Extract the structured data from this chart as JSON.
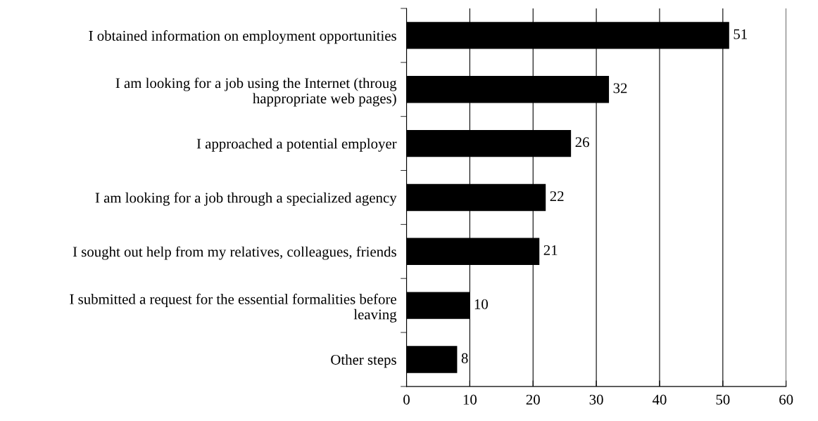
{
  "chart_data": {
    "type": "bar",
    "orientation": "horizontal",
    "categories": [
      "I obtained information on employment opportunities",
      "I am looking for a job using the Internet (throug\nhappropriate web pages)",
      "I approached a potential employer",
      "I am looking for a job through a specialized agency",
      "I sought out help from my relatives, colleagues, friends",
      "I submitted a request for the essential formalities before\nleaving",
      "Other steps"
    ],
    "values": [
      51,
      32,
      26,
      22,
      21,
      10,
      8
    ],
    "color": "#000000",
    "xlim": [
      0,
      60
    ],
    "xticks": [
      0,
      10,
      20,
      30,
      40,
      50,
      60
    ],
    "grid": "x",
    "data_labels": true,
    "legend": false
  }
}
